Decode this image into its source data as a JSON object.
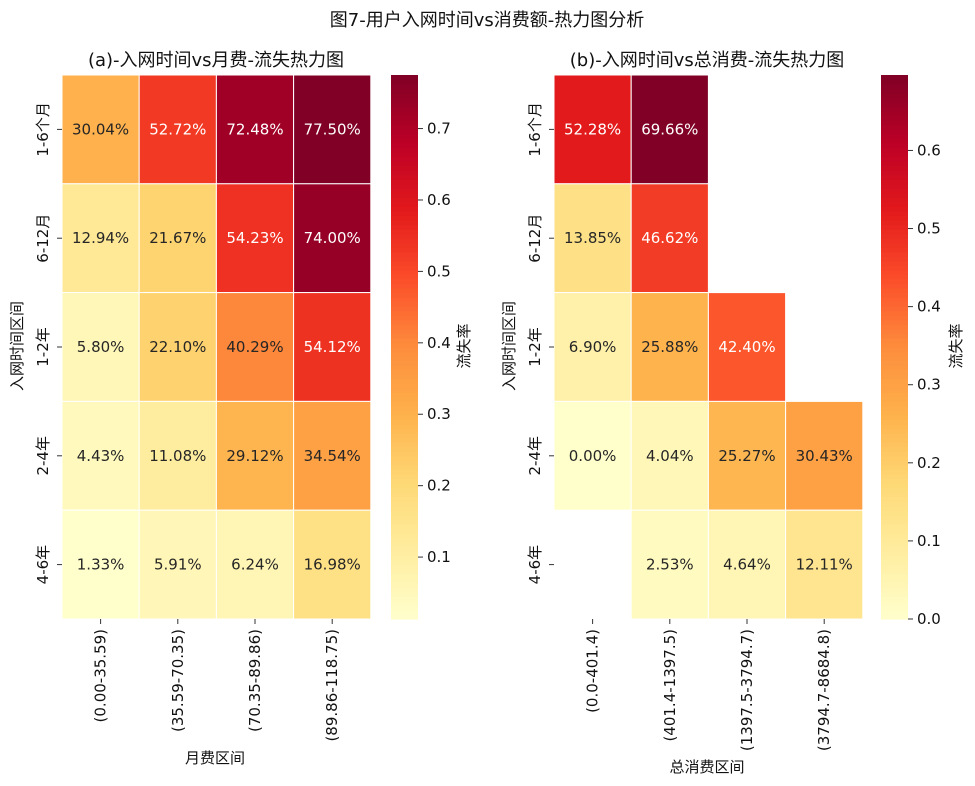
{
  "suptitle": "图7-用户入网时间vs消费额-热力图分析",
  "colormap": [
    "#ffffcc",
    "#ffeda0",
    "#fed976",
    "#feb24c",
    "#fd8d3c",
    "#fc4e2a",
    "#e31a1c",
    "#bd0026",
    "#800026"
  ],
  "chart_data": [
    {
      "type": "heatmap",
      "title": "(a)-入网时间vs月费-流失热力图",
      "xlabel": "月费区间",
      "ylabel": "入网时间区间",
      "colorbar_label": "流失率",
      "x_categories": [
        "(0.00-35.59)",
        "(35.59-70.35)",
        "(70.35-89.86)",
        "(89.86-118.75)"
      ],
      "y_categories": [
        "1-6个月",
        "6-12月",
        "1-2年",
        "2-4年",
        "4-6年"
      ],
      "values": [
        [
          0.3004,
          0.5272,
          0.7248,
          0.775
        ],
        [
          0.1294,
          0.2167,
          0.5423,
          0.74
        ],
        [
          0.058,
          0.221,
          0.4029,
          0.5412
        ],
        [
          0.0443,
          0.1108,
          0.2912,
          0.3454
        ],
        [
          0.0133,
          0.0591,
          0.0624,
          0.1698
        ]
      ],
      "labels": [
        [
          "30.04%",
          "52.72%",
          "72.48%",
          "77.50%"
        ],
        [
          "12.94%",
          "21.67%",
          "54.23%",
          "74.00%"
        ],
        [
          "5.80%",
          "22.10%",
          "40.29%",
          "54.12%"
        ],
        [
          "4.43%",
          "11.08%",
          "29.12%",
          "34.54%"
        ],
        [
          "1.33%",
          "5.91%",
          "6.24%",
          "16.98%"
        ]
      ],
      "color_range": [
        0.0133,
        0.775
      ],
      "colorbar_ticks": [
        "0.1",
        "0.2",
        "0.3",
        "0.4",
        "0.5",
        "0.6",
        "0.7"
      ]
    },
    {
      "type": "heatmap",
      "title": "(b)-入网时间vs总消费-流失热力图",
      "xlabel": "总消费区间",
      "ylabel": "入网时间区间",
      "colorbar_label": "流失率",
      "x_categories": [
        "(0.0-401.4)",
        "(401.4-1397.5)",
        "(1397.5-3794.7)",
        "(3794.7-8684.8)"
      ],
      "y_categories": [
        "1-6个月",
        "6-12月",
        "1-2年",
        "2-4年",
        "4-6年"
      ],
      "values": [
        [
          0.5228,
          0.6966,
          null,
          null
        ],
        [
          0.1385,
          0.4662,
          null,
          null
        ],
        [
          0.069,
          0.2588,
          0.424,
          null
        ],
        [
          0.0,
          0.0404,
          0.2527,
          0.3043
        ],
        [
          null,
          0.0253,
          0.0464,
          0.1211
        ]
      ],
      "labels": [
        [
          "52.28%",
          "69.66%",
          "",
          ""
        ],
        [
          "13.85%",
          "46.62%",
          "",
          ""
        ],
        [
          "6.90%",
          "25.88%",
          "42.40%",
          ""
        ],
        [
          "0.00%",
          "4.04%",
          "25.27%",
          "30.43%"
        ],
        [
          "",
          "2.53%",
          "4.64%",
          "12.11%"
        ]
      ],
      "color_range": [
        0.0,
        0.6966
      ],
      "colorbar_ticks": [
        "0.0",
        "0.1",
        "0.2",
        "0.3",
        "0.4",
        "0.5",
        "0.6"
      ]
    }
  ]
}
